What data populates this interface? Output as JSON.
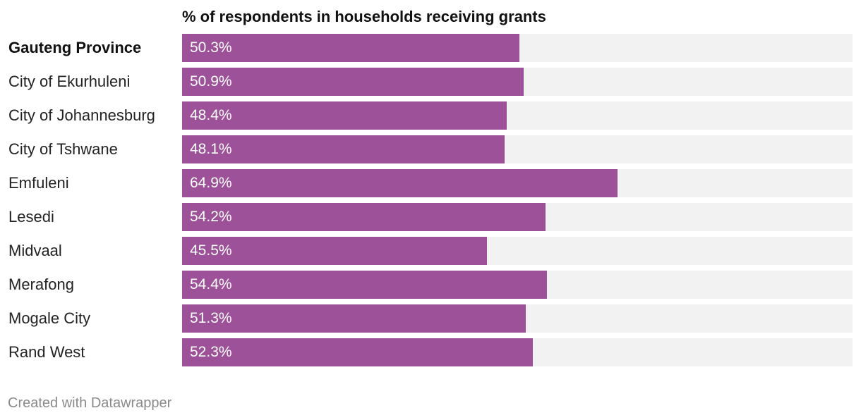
{
  "chart_data": {
    "type": "bar",
    "orientation": "horizontal",
    "title": "% of respondents in households receiving grants",
    "xlim": [
      0,
      100
    ],
    "value_suffix": "%",
    "bar_color": "#9c5198",
    "track_color": "#f2f2f2",
    "categories": [
      "Gauteng Province",
      "City of Ekurhuleni",
      "City of Johannesburg",
      "City of Tshwane",
      "Emfuleni",
      "Lesedi",
      "Midvaal",
      "Merafong",
      "Mogale City",
      "Rand West"
    ],
    "values": [
      50.3,
      50.9,
      48.4,
      48.1,
      64.9,
      54.2,
      45.5,
      54.4,
      51.3,
      52.3
    ],
    "value_labels": [
      "50.3%",
      "50.9%",
      "48.4%",
      "48.1%",
      "64.9%",
      "54.2%",
      "45.5%",
      "54.4%",
      "51.3%",
      "52.3%"
    ],
    "bold_categories": [
      "Gauteng Province"
    ]
  },
  "footer": {
    "credit": "Created with Datawrapper"
  }
}
